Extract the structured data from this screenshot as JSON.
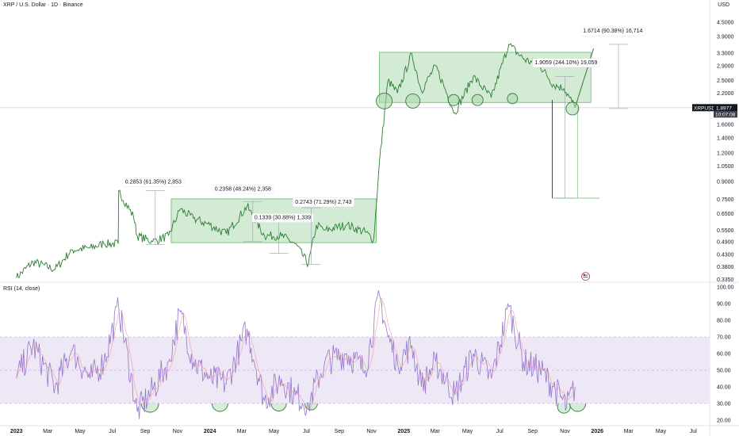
{
  "header": {
    "title": "XRP / U.S. Dollar · 1D · Binance",
    "currency": "USD",
    "rsi_label": "RSI (14, close)"
  },
  "colors": {
    "price_line": "#2e7d32",
    "box_fill": "#c8e6c9",
    "box_stroke": "#66bb6a",
    "rsi_line": "#9575cd",
    "rsi_band": "#ede7f6",
    "rsi_ma": "#ef9a9a",
    "price_tag": "#131722"
  },
  "price_tag": {
    "symbol": "XRPUSD",
    "price": "1.8977",
    "countdown": "10:07:08"
  },
  "annotations": {
    "m1": "0.2853 (61.35%) 2,853",
    "m2": "0.2358 (48.24%) 2,358",
    "m3": "0.1339 (30.88%) 1,339",
    "m4": "0.2743 (71.29%) 2,743",
    "m5": "1.9059 (244.10%) 19,059",
    "m6": "1.6714 (90.38%) 16,714"
  },
  "chart_data": [
    {
      "type": "line",
      "title": "XRP / U.S. Dollar · 1D · Binance",
      "ylabel": "USD",
      "scale": "log",
      "ylim": [
        0.32,
        5.2
      ],
      "yticks": [
        "4.5000",
        "3.9000",
        "3.3000",
        "2.9000",
        "2.5000",
        "2.2000",
        "1.9000",
        "1.6000",
        "1.4000",
        "1.2000",
        "1.0500",
        "0.9000",
        "0.7500",
        "0.6500",
        "0.5500",
        "0.4900",
        "0.4300",
        "0.3800",
        "0.3350"
      ],
      "x_labels": [
        "2023",
        "Mar",
        "May",
        "Jul",
        "Sep",
        "Nov",
        "2024",
        "Mar",
        "May",
        "Jul",
        "Sep",
        "Nov",
        "2025",
        "Mar",
        "May",
        "Jul",
        "Sep",
        "Nov",
        "2026",
        "Mar",
        "May",
        "Jul"
      ],
      "series": [
        {
          "x": [
            "2023-01-01",
            "2023-02-01",
            "2023-03-15",
            "2023-04-15",
            "2023-05-20",
            "2023-06-15",
            "2023-07-12",
            "2023-07-13",
            "2023-08-10",
            "2023-08-17",
            "2023-09-15",
            "2023-10-15",
            "2023-11-06",
            "2023-12-01",
            "2024-01-01",
            "2024-02-01",
            "2024-03-11",
            "2024-04-13",
            "2024-05-15",
            "2024-06-10",
            "2024-07-05",
            "2024-07-20",
            "2024-08-05",
            "2024-09-15",
            "2024-10-20",
            "2024-11-05",
            "2024-11-16",
            "2024-12-02",
            "2024-12-20",
            "2025-01-16",
            "2025-02-03",
            "2025-03-02",
            "2025-04-07",
            "2025-05-12",
            "2025-06-15",
            "2025-07-18",
            "2025-08-15",
            "2025-09-15",
            "2025-10-10",
            "2025-10-30",
            "2025-11-10",
            "2025-11-20"
          ],
          "values": [
            0.34,
            0.4,
            0.37,
            0.45,
            0.46,
            0.48,
            0.48,
            0.82,
            0.63,
            0.52,
            0.49,
            0.52,
            0.68,
            0.62,
            0.58,
            0.53,
            0.7,
            0.52,
            0.52,
            0.48,
            0.39,
            0.58,
            0.55,
            0.58,
            0.54,
            0.5,
            1.1,
            2.5,
            2.2,
            3.28,
            2.25,
            2.9,
            1.8,
            2.6,
            2.1,
            3.6,
            3.1,
            2.9,
            2.4,
            2.3,
            2.1,
            1.9
          ]
        }
      ]
    },
    {
      "type": "line",
      "title": "RSI (14, close)",
      "ylim": [
        20,
        100
      ],
      "yticks": [
        "100.00",
        "90.00",
        "80.00",
        "70.00",
        "60.00",
        "50.00",
        "40.00",
        "30.00",
        "20.00"
      ],
      "bands": [
        30,
        70
      ],
      "series": [
        {
          "name": "RSI",
          "x": [
            "2023-01-01",
            "2023-02-01",
            "2023-03-15",
            "2023-04-15",
            "2023-05-20",
            "2023-06-15",
            "2023-07-13",
            "2023-08-17",
            "2023-09-15",
            "2023-10-15",
            "2023-11-06",
            "2023-12-01",
            "2024-01-01",
            "2024-02-01",
            "2024-03-11",
            "2024-04-13",
            "2024-05-15",
            "2024-06-10",
            "2024-07-05",
            "2024-08-05",
            "2024-09-15",
            "2024-10-20",
            "2024-11-16",
            "2024-12-02",
            "2024-12-20",
            "2025-01-16",
            "2025-02-03",
            "2025-03-02",
            "2025-04-07",
            "2025-05-12",
            "2025-06-15",
            "2025-07-18",
            "2025-08-15",
            "2025-09-15",
            "2025-10-10",
            "2025-11-04",
            "2025-11-20"
          ],
          "values": [
            45,
            65,
            40,
            62,
            45,
            55,
            88,
            25,
            38,
            55,
            85,
            55,
            45,
            42,
            75,
            32,
            45,
            35,
            30,
            55,
            60,
            50,
            95,
            70,
            55,
            65,
            40,
            55,
            35,
            60,
            45,
            88,
            55,
            50,
            40,
            28,
            40
          ]
        }
      ]
    }
  ]
}
